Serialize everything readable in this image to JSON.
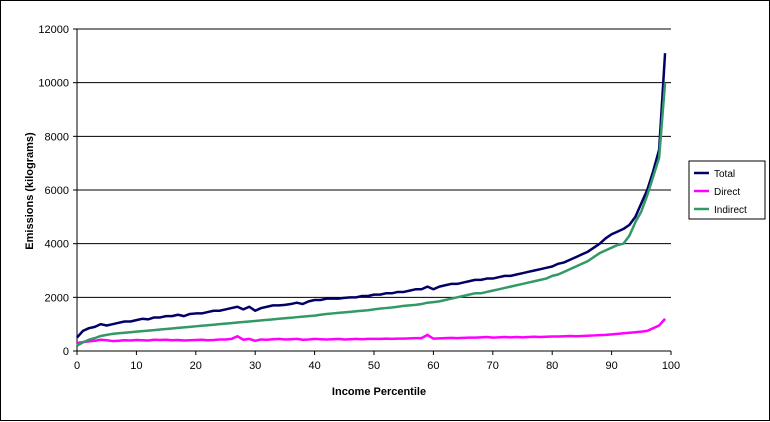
{
  "chart_data": {
    "type": "line",
    "title": "",
    "xlabel": "Income Percentile",
    "ylabel": "Emissions (kilograms)",
    "xlim": [
      0,
      100
    ],
    "ylim": [
      0,
      12000
    ],
    "xticks": [
      0,
      10,
      20,
      30,
      40,
      50,
      60,
      70,
      80,
      90,
      100
    ],
    "yticks": [
      0,
      2000,
      4000,
      6000,
      8000,
      10000,
      12000
    ],
    "grid": "horizontal",
    "legend_position": "right",
    "x": [
      0,
      1,
      2,
      3,
      4,
      5,
      6,
      7,
      8,
      9,
      10,
      11,
      12,
      13,
      14,
      15,
      16,
      17,
      18,
      19,
      20,
      21,
      22,
      23,
      24,
      25,
      26,
      27,
      28,
      29,
      30,
      31,
      32,
      33,
      34,
      35,
      36,
      37,
      38,
      39,
      40,
      41,
      42,
      43,
      44,
      45,
      46,
      47,
      48,
      49,
      50,
      51,
      52,
      53,
      54,
      55,
      56,
      57,
      58,
      59,
      60,
      61,
      62,
      63,
      64,
      65,
      66,
      67,
      68,
      69,
      70,
      71,
      72,
      73,
      74,
      75,
      76,
      77,
      78,
      79,
      80,
      81,
      82,
      83,
      84,
      85,
      86,
      87,
      88,
      89,
      90,
      91,
      92,
      93,
      94,
      95,
      96,
      97,
      98,
      99
    ],
    "series": [
      {
        "name": "Total",
        "color": "#000066",
        "values": [
          500,
          750,
          850,
          900,
          1000,
          950,
          1000,
          1050,
          1100,
          1100,
          1150,
          1200,
          1180,
          1250,
          1250,
          1300,
          1300,
          1350,
          1300,
          1380,
          1400,
          1400,
          1450,
          1500,
          1500,
          1550,
          1600,
          1650,
          1550,
          1650,
          1500,
          1600,
          1650,
          1700,
          1700,
          1720,
          1750,
          1800,
          1750,
          1850,
          1900,
          1900,
          1950,
          1950,
          1950,
          1980,
          2000,
          2000,
          2050,
          2050,
          2100,
          2100,
          2150,
          2150,
          2200,
          2200,
          2250,
          2300,
          2300,
          2400,
          2300,
          2400,
          2450,
          2500,
          2500,
          2550,
          2600,
          2650,
          2650,
          2700,
          2700,
          2750,
          2800,
          2800,
          2850,
          2900,
          2950,
          3000,
          3050,
          3100,
          3150,
          3250,
          3300,
          3400,
          3500,
          3600,
          3700,
          3850,
          4000,
          4200,
          4350,
          4450,
          4550,
          4700,
          5000,
          5500,
          6000,
          6700,
          7500,
          11100
        ]
      },
      {
        "name": "Direct",
        "color": "#ff00ff",
        "values": [
          300,
          330,
          360,
          380,
          420,
          400,
          370,
          380,
          400,
          390,
          410,
          400,
          390,
          420,
          410,
          420,
          400,
          410,
          390,
          400,
          410,
          420,
          400,
          410,
          430,
          430,
          450,
          550,
          420,
          450,
          380,
          430,
          420,
          440,
          450,
          430,
          440,
          450,
          420,
          430,
          450,
          440,
          430,
          440,
          450,
          430,
          440,
          450,
          440,
          450,
          450,
          450,
          460,
          450,
          460,
          460,
          470,
          480,
          480,
          600,
          460,
          470,
          480,
          490,
          480,
          490,
          500,
          500,
          510,
          520,
          500,
          510,
          520,
          510,
          520,
          510,
          520,
          530,
          520,
          530,
          540,
          540,
          550,
          560,
          550,
          560,
          570,
          580,
          590,
          600,
          620,
          640,
          660,
          680,
          700,
          720,
          750,
          850,
          950,
          1200
        ]
      },
      {
        "name": "Indirect",
        "color": "#339966",
        "values": [
          200,
          320,
          420,
          480,
          560,
          600,
          640,
          660,
          680,
          700,
          720,
          740,
          760,
          780,
          800,
          820,
          840,
          860,
          880,
          900,
          920,
          940,
          960,
          980,
          1000,
          1020,
          1040,
          1060,
          1080,
          1100,
          1120,
          1140,
          1160,
          1180,
          1200,
          1220,
          1240,
          1260,
          1280,
          1300,
          1320,
          1350,
          1380,
          1400,
          1420,
          1440,
          1460,
          1480,
          1500,
          1520,
          1550,
          1580,
          1600,
          1620,
          1650,
          1680,
          1700,
          1720,
          1750,
          1800,
          1820,
          1850,
          1900,
          1950,
          2000,
          2050,
          2100,
          2150,
          2150,
          2200,
          2250,
          2300,
          2350,
          2400,
          2450,
          2500,
          2550,
          2600,
          2650,
          2700,
          2800,
          2850,
          2950,
          3050,
          3150,
          3250,
          3350,
          3500,
          3650,
          3750,
          3850,
          3950,
          4000,
          4300,
          4800,
          5200,
          5800,
          6500,
          7200,
          10000
        ]
      }
    ]
  }
}
